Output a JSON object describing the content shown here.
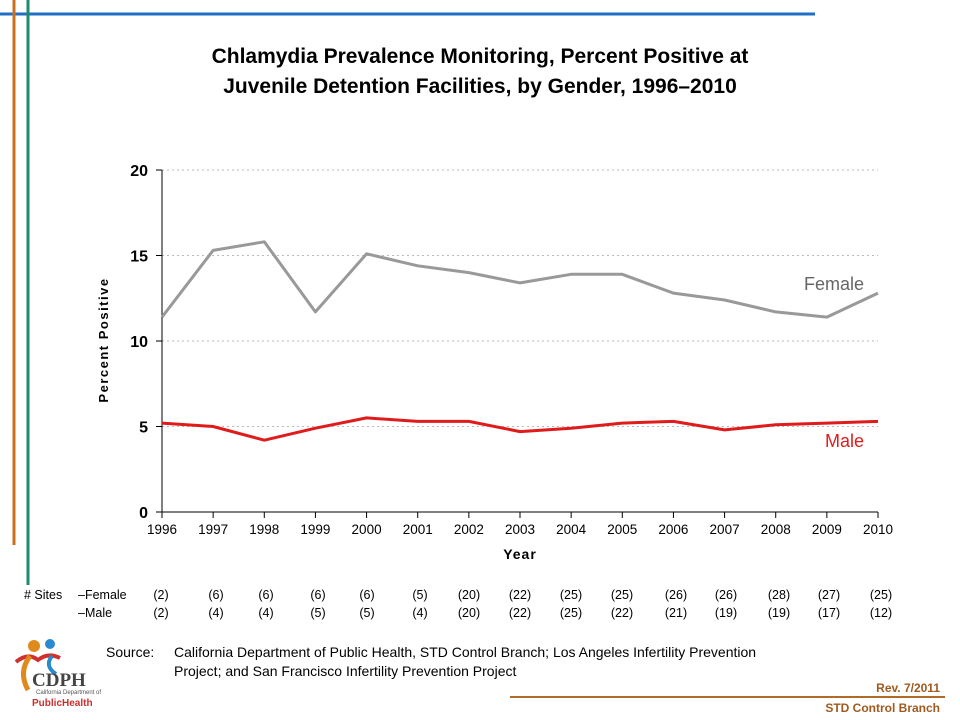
{
  "title_line1": "Chlamydia Prevalence Monitoring, Percent Positive at",
  "title_line2": "Juvenile Detention Facilities, by Gender, 1996–2010",
  "chart_data": {
    "type": "line",
    "x": [
      1996,
      1997,
      1998,
      1999,
      2000,
      2001,
      2002,
      2003,
      2004,
      2005,
      2006,
      2007,
      2008,
      2009,
      2010
    ],
    "series": [
      {
        "name": "Female",
        "values": [
          11.4,
          15.3,
          15.8,
          11.7,
          15.1,
          14.4,
          14.0,
          13.4,
          13.9,
          13.9,
          12.8,
          12.4,
          11.7,
          11.4,
          12.8
        ],
        "color": "#999999"
      },
      {
        "name": "Male",
        "values": [
          5.2,
          5.0,
          4.2,
          4.9,
          5.5,
          5.3,
          5.3,
          4.7,
          4.9,
          5.2,
          5.3,
          4.8,
          5.1,
          5.2,
          5.3
        ],
        "color": "#e01b1b"
      }
    ],
    "xlabel": "Year",
    "ylabel": "Percent Positive",
    "ylim": [
      0,
      20
    ],
    "yticks": [
      0,
      5,
      10,
      15,
      20
    ],
    "grid": true,
    "legend": "inline labels at right"
  },
  "sites": {
    "label": "# Sites",
    "female_label": "–Female",
    "male_label": "–Male",
    "female": [
      "(2)",
      "(6)",
      "(6)",
      "(6)",
      "(6)",
      "(5)",
      "(20)",
      "(22)",
      "(25)",
      "(25)",
      "(26)",
      "(26)",
      "(28)",
      "(27)",
      "(25)"
    ],
    "male": [
      "(2)",
      "(4)",
      "(4)",
      "(5)",
      "(5)",
      "(4)",
      "(20)",
      "(22)",
      "(25)",
      "(22)",
      "(21)",
      "(19)",
      "(19)",
      "(17)",
      "(12)"
    ]
  },
  "source": {
    "label": "Source:",
    "line1": "California Department of Public Health, STD Control Branch; Los Angeles Infertility Prevention",
    "line2": "Project; and San Francisco Infertility Prevention Project"
  },
  "footer": {
    "rev": "Rev. 7/2011",
    "branch": "STD Control Branch"
  },
  "logo": {
    "name": "CDPH",
    "sub": "California Department of",
    "health": "PublicHealth"
  },
  "colors": {
    "top_rule": "#1f6fc5",
    "left_rule_orange": "#c8701e",
    "left_rule_teal": "#1e8a6e",
    "footer_rule": "#b06a2a"
  }
}
